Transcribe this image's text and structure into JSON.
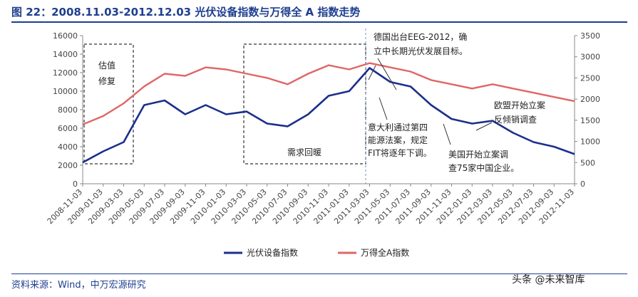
{
  "header": {
    "title": "图 22：2008.11.03-2012.12.03 光伏设备指数与万得全 A 指数走势"
  },
  "footer": {
    "source": "资料来源：Wind，中万宏源研究",
    "watermark": "头条 @未来智库"
  },
  "colors": {
    "pv": "#1b2f8c",
    "wind_a": "#e06666",
    "brand": "#1e3f8f"
  },
  "chart_data": {
    "type": "line",
    "title": "",
    "x": [
      "2008-11-03",
      "2009-01-03",
      "2009-03-03",
      "2009-05-03",
      "2009-07-03",
      "2009-09-03",
      "2009-11-03",
      "2010-01-03",
      "2010-03-03",
      "2010-05-03",
      "2010-07-03",
      "2010-09-03",
      "2010-11-03",
      "2011-01-03",
      "2011-03-03",
      "2011-05-03",
      "2011-07-03",
      "2011-09-03",
      "2011-11-03",
      "2012-01-03",
      "2012-03-03",
      "2012-05-03",
      "2012-07-03",
      "2012-09-03",
      "2012-11-03"
    ],
    "y_left": {
      "ticks": [
        0,
        2000,
        4000,
        6000,
        8000,
        10000,
        12000,
        14000,
        16000
      ],
      "range": [
        0,
        16000
      ]
    },
    "y_right": {
      "ticks": [
        0,
        500,
        1000,
        1500,
        2000,
        2500,
        3000,
        3500
      ],
      "range": [
        0,
        3500
      ]
    },
    "series": [
      {
        "name": "光伏设备指数",
        "axis": "left",
        "color": "#1b2f8c",
        "values": [
          2300,
          3500,
          4500,
          8500,
          9000,
          7500,
          8500,
          7500,
          7800,
          6500,
          6200,
          7500,
          9500,
          10000,
          12500,
          11000,
          10500,
          8500,
          7000,
          6500,
          6800,
          5500,
          4500,
          4000,
          3200
        ]
      },
      {
        "name": "万得全A指数",
        "axis": "right",
        "color": "#e06666",
        "values": [
          1400,
          1600,
          1900,
          2300,
          2600,
          2550,
          2750,
          2700,
          2600,
          2500,
          2350,
          2600,
          2800,
          2700,
          2850,
          2750,
          2650,
          2450,
          2350,
          2250,
          2350,
          2250,
          2150,
          2050,
          1950
        ]
      }
    ],
    "annotations": [
      {
        "id": "valuation",
        "lines": [
          "估值",
          "修复"
        ]
      },
      {
        "id": "demand",
        "lines": [
          "需求回暖"
        ]
      },
      {
        "id": "germany",
        "lines": [
          "德国出台EEG-2012，确",
          "立中长期光伏发展目标。"
        ]
      },
      {
        "id": "italy",
        "lines": [
          "意大利通过第四",
          "能源法案，规定",
          "FIT将逐年下调。"
        ]
      },
      {
        "id": "us",
        "lines": [
          "美国开始立案调",
          "查75家中国企业。"
        ]
      },
      {
        "id": "eu",
        "lines": [
          "欧盟开始立案",
          "反倾销调查"
        ]
      }
    ],
    "legend": {
      "position": "bottom-center"
    },
    "grid": false
  }
}
